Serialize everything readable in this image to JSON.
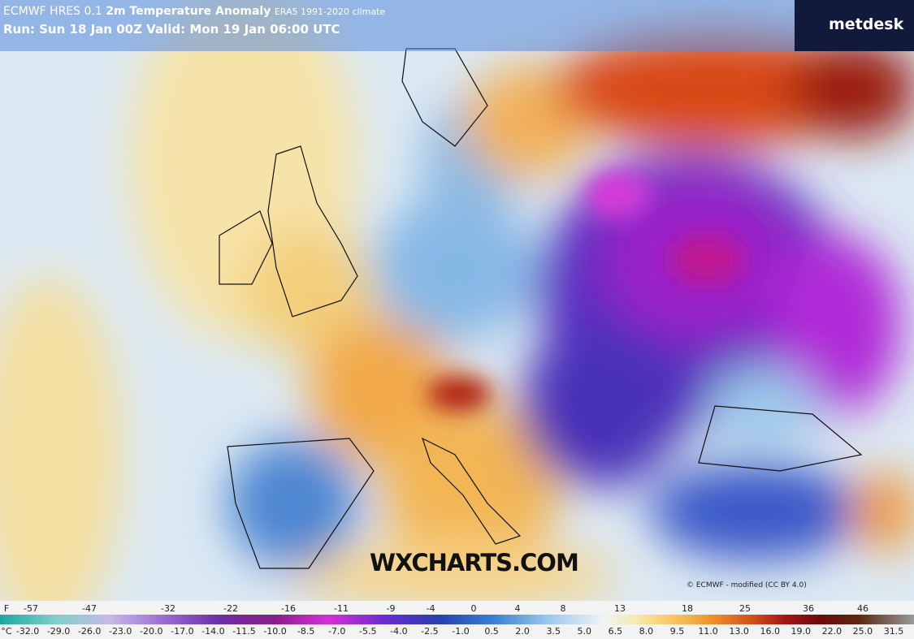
{
  "header": {
    "model": "ECMWF HRES 0.1",
    "title": "2m Temperature Anomaly",
    "climate": "ERA5 1991-2020 climate",
    "run": "Run: Sun 18 Jan 00Z Valid: Mon 19 Jan 06:00 UTC"
  },
  "logo": "metdesk",
  "watermark": "WXCHARTS.COM",
  "credit": "© ECMWF - modified (CC BY 4.0)",
  "colorbar": {
    "f_unit": "F",
    "f_labels": [
      "-57",
      "-47",
      "-32",
      "-22",
      "-16",
      "-11",
      "-9",
      "-4",
      "0",
      "4",
      "8",
      "13",
      "18",
      "25",
      "36",
      "46"
    ],
    "c_unit": "°C",
    "c_labels": [
      "-32.0",
      "-29.0",
      "-26.0",
      "-23.0",
      "-20.0",
      "-17.0",
      "-14.0",
      "-11.5",
      "-10.0",
      "-8.5",
      "-7.0",
      "-5.5",
      "-4.0",
      "-2.5",
      "-1.0",
      "0.5",
      "2.0",
      "3.5",
      "5.0",
      "6.5",
      "8.0",
      "9.5",
      "11.0",
      "13.0",
      "16.0",
      "19.0",
      "22.0",
      "25.0",
      "31.5"
    ]
  }
}
